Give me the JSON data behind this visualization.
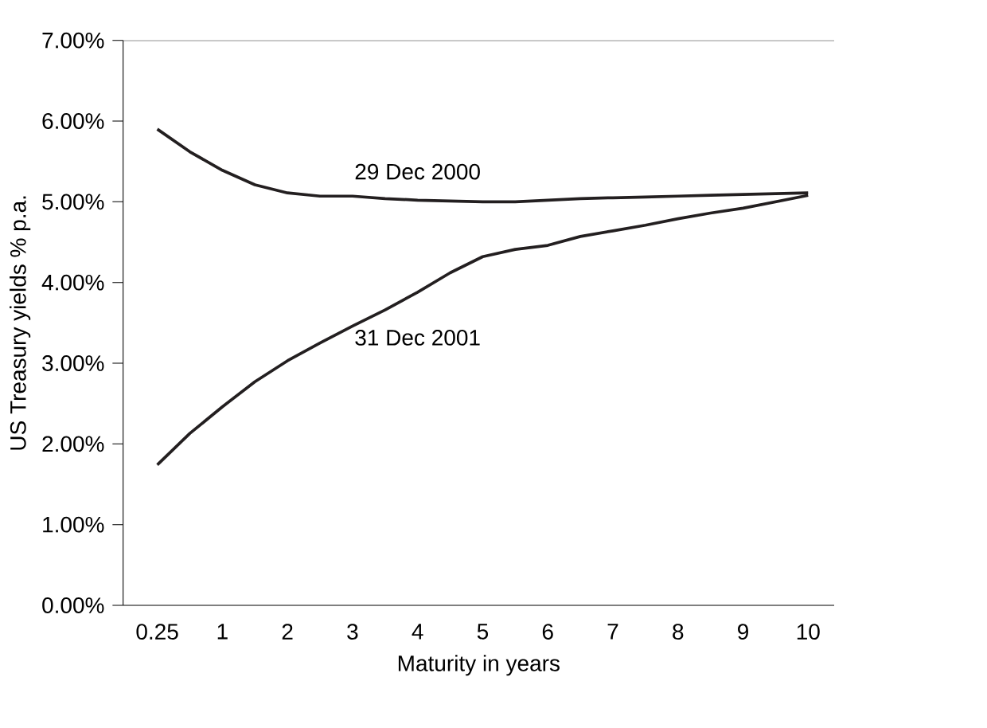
{
  "chart_data": {
    "type": "line",
    "xlabel": "Maturity in years",
    "ylabel": "US Treasury yields % p.a.",
    "categories": [
      "0.25",
      null,
      "1",
      null,
      "2",
      null,
      "3",
      null,
      "4",
      null,
      "5",
      null,
      "6",
      null,
      "7",
      null,
      "8",
      null,
      "9",
      null,
      "10"
    ],
    "series": [
      {
        "name": "29 Dec 2000",
        "color": "#231f20",
        "values": [
          5.9,
          5.62,
          5.39,
          5.21,
          5.11,
          5.07,
          5.07,
          5.04,
          5.02,
          5.01,
          5.0,
          5.0,
          5.02,
          5.04,
          5.05,
          5.06,
          5.07,
          5.08,
          5.09,
          5.1,
          5.11
        ]
      },
      {
        "name": "31 Dec 2001",
        "color": "#231f20",
        "values": [
          1.74,
          2.13,
          2.46,
          2.77,
          3.03,
          3.25,
          3.46,
          3.66,
          3.88,
          4.12,
          4.32,
          4.41,
          4.46,
          4.57,
          4.64,
          4.71,
          4.79,
          4.86,
          4.92,
          5.0,
          5.08
        ]
      }
    ],
    "ylim": [
      0,
      7
    ],
    "yticks": [
      {
        "value": 0,
        "label": "0.00%"
      },
      {
        "value": 1,
        "label": "1.00%"
      },
      {
        "value": 2,
        "label": "2.00%"
      },
      {
        "value": 3,
        "label": "3.00%"
      },
      {
        "value": 4,
        "label": "4.00%"
      },
      {
        "value": 5,
        "label": "5.00%"
      },
      {
        "value": 6,
        "label": "6.00%"
      },
      {
        "value": 7,
        "label": "7.00%"
      }
    ],
    "grid": false,
    "legend": false,
    "marker": "none",
    "line_style": "solid"
  }
}
